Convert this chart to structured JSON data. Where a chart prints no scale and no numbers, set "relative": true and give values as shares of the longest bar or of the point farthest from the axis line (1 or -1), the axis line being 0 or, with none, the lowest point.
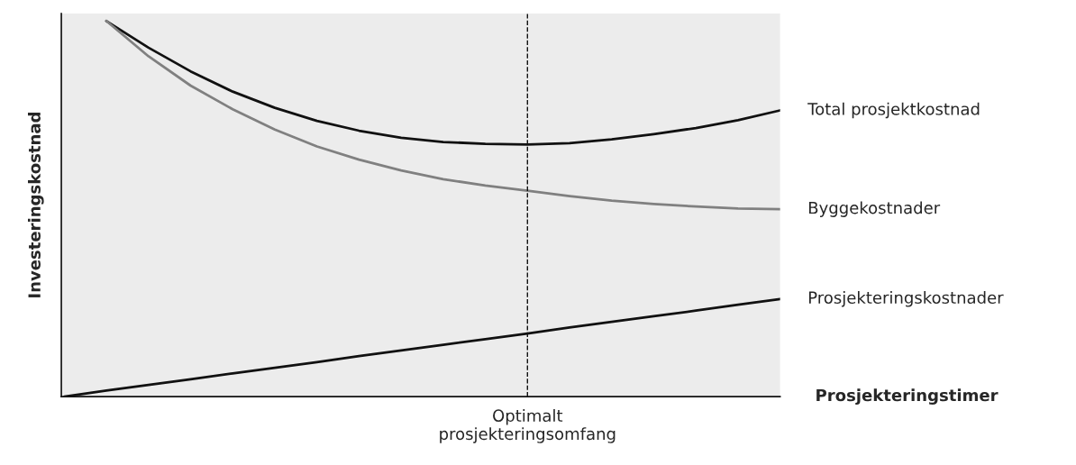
{
  "chart_data": {
    "type": "line",
    "relative": true,
    "ylabel": "Investeringskostnad",
    "xlabel": "Prosjekteringstimer",
    "legend": false,
    "marker": "none",
    "line_style": "solid",
    "categories": [
      null,
      null,
      null,
      null,
      null,
      null,
      null,
      null,
      null,
      null,
      null,
      null,
      null,
      null,
      null,
      null,
      null,
      null
    ],
    "series": [
      {
        "name": "Total prosjektkostnad",
        "color": "#111111",
        "values": [
          null,
          1,
          0.929,
          0.866,
          0.812,
          0.769,
          0.734,
          0.708,
          0.689,
          0.678,
          0.673,
          0.671,
          0.675,
          0.685,
          0.699,
          0.715,
          0.736,
          0.762
        ]
      },
      {
        "name": "Byggekostnader",
        "color": "#808080",
        "values": [
          null,
          1,
          0.906,
          0.828,
          0.765,
          0.711,
          0.666,
          0.631,
          0.602,
          0.579,
          0.562,
          0.548,
          0.534,
          0.522,
          0.513,
          0.506,
          0.501,
          0.499
        ]
      },
      {
        "name": "Prosjekteringskostnader",
        "color": "#111111",
        "values": [
          0,
          0.016,
          0.031,
          0.046,
          0.062,
          0.077,
          0.092,
          0.108,
          0.123,
          0.138,
          0.153,
          0.168,
          0.184,
          0.199,
          0.214,
          0.229,
          0.245,
          0.26
        ]
      }
    ],
    "annotations": [
      "Optimalt\nprosjekteringsomfang"
    ]
  }
}
